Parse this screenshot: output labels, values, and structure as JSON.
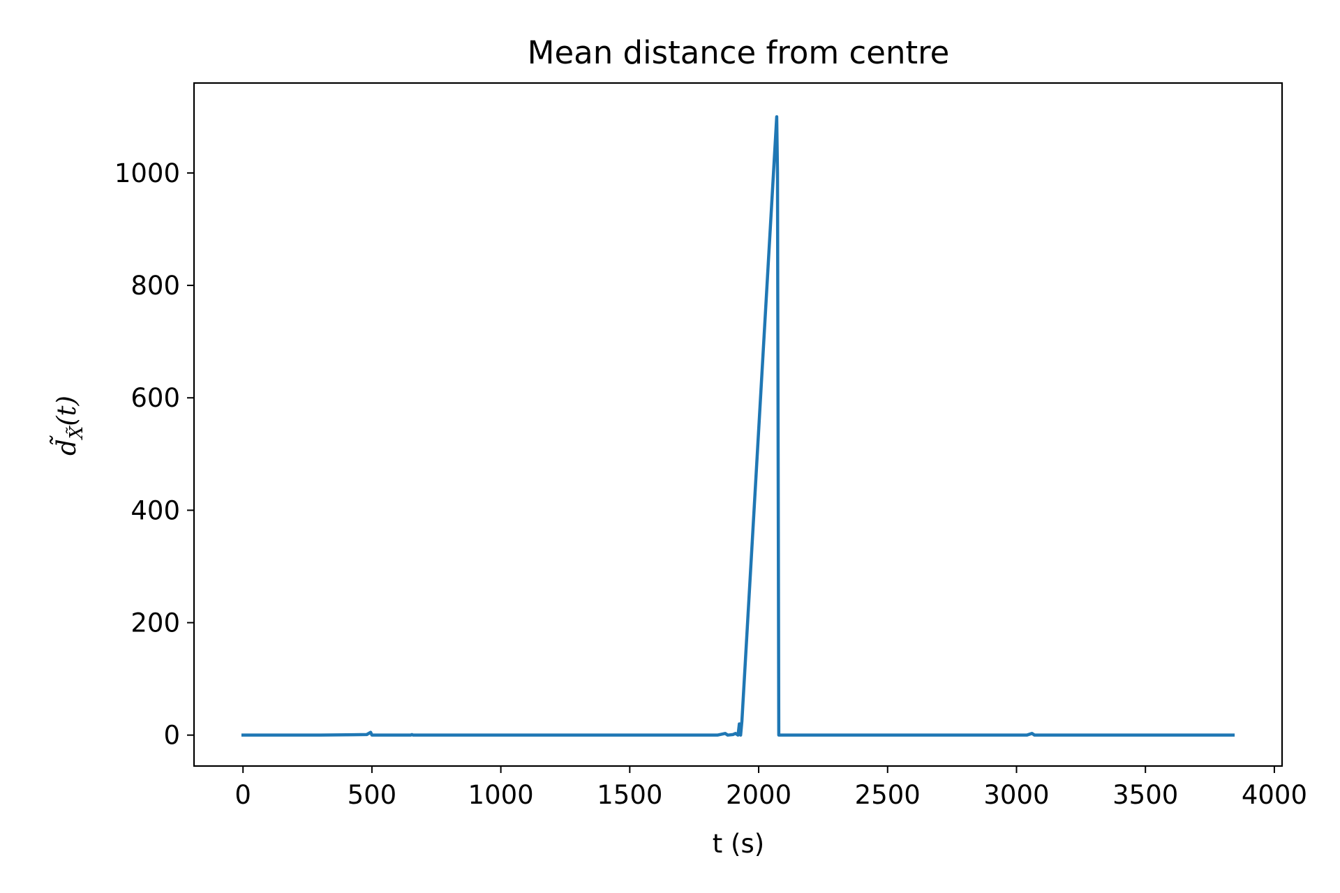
{
  "chart_data": {
    "type": "line",
    "title": "Mean distance from centre",
    "xlabel": "t (s)",
    "ylabel": "d̃X̃(t)",
    "ylabel_parts": {
      "main": "d̃",
      "sub": "X̃",
      "suffix": "(t)"
    },
    "xlim": [
      -190,
      4030
    ],
    "ylim": [
      -55,
      1160
    ],
    "xticks": [
      0,
      500,
      1000,
      1500,
      2000,
      2500,
      3000,
      3500,
      4000
    ],
    "xtick_labels": [
      "0",
      "500",
      "1000",
      "1500",
      "2000",
      "2500",
      "3000",
      "3500",
      "4000"
    ],
    "yticks": [
      0,
      200,
      400,
      600,
      800,
      1000
    ],
    "ytick_labels": [
      "0",
      "200",
      "400",
      "600",
      "800",
      "1000"
    ],
    "grid": false,
    "series": [
      {
        "color": "#1f77b4",
        "x": [
          0,
          300,
          480,
          495,
          500,
          650,
          655,
          660,
          1000,
          1500,
          1840,
          1870,
          1880,
          1900,
          1910,
          1920,
          1925,
          1930,
          1935,
          2070,
          2073,
          2078,
          2250,
          2900,
          3040,
          3060,
          3070,
          3840
        ],
        "y": [
          0,
          0,
          1,
          5,
          0,
          0,
          1,
          0,
          0,
          0,
          0,
          3,
          0,
          1,
          3,
          0,
          20,
          0,
          25,
          1100,
          1000,
          0,
          0,
          0,
          0,
          3,
          0,
          0
        ]
      }
    ]
  }
}
